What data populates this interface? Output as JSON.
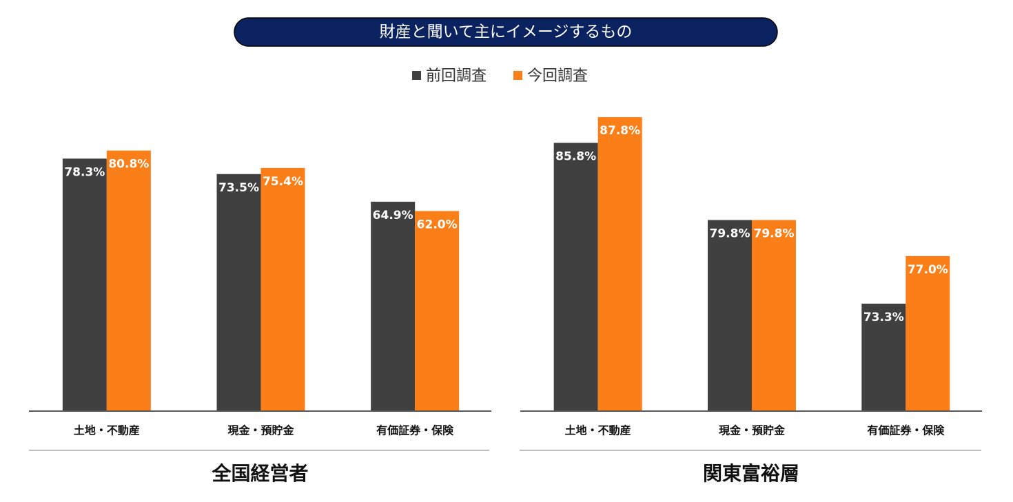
{
  "title": "財産と聞いて主にイメージするもの",
  "chart_data": [
    {
      "type": "bar",
      "title": "全国経営者",
      "categories": [
        "土地・不動産",
        "現金・預貯金",
        "有価証券・保険"
      ],
      "series": [
        {
          "name": "前回調査",
          "color": "#404040",
          "values": [
            78.3,
            73.5,
            64.9
          ],
          "value_labels": [
            "78.3%",
            "73.5%",
            "64.9%"
          ]
        },
        {
          "name": "今回調査",
          "color": "#fb7f18",
          "values": [
            80.8,
            75.4,
            62.0
          ],
          "value_labels": [
            "80.8%",
            "75.4%",
            "62.0%"
          ]
        }
      ],
      "ylim": [
        0,
        100
      ]
    },
    {
      "type": "bar",
      "title": "関東富裕層",
      "categories": [
        "土地・不動産",
        "現金・預貯金",
        "有価証券・保険"
      ],
      "series": [
        {
          "name": "前回調査",
          "color": "#404040",
          "values": [
            85.8,
            79.8,
            73.3
          ],
          "value_labels": [
            "85.8%",
            "79.8%",
            "73.3%"
          ]
        },
        {
          "name": "今回調査",
          "color": "#fb7f18",
          "values": [
            87.8,
            79.8,
            77.0
          ],
          "value_labels": [
            "87.8%",
            "79.8%",
            "77.0%"
          ]
        }
      ],
      "ylim": [
        65,
        90
      ]
    }
  ]
}
